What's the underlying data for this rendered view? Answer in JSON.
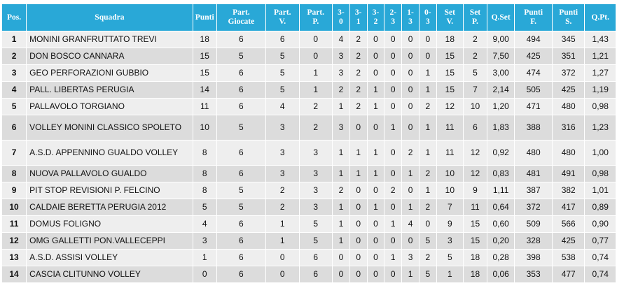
{
  "headers": [
    "Pos.",
    "Squadra",
    "Punti",
    "Part.\nGiocate",
    "Part.\nV.",
    "Part.\nP.",
    "3-\n0",
    "3-\n1",
    "3-\n2",
    "2-\n3",
    "1-\n3",
    "0-\n3",
    "Set\nV.",
    "Set\nP.",
    "Q.Set",
    "Punti\nF.",
    "Punti\nS.",
    "Q.Pt."
  ],
  "rows": [
    [
      "1",
      "MONINI GRANFRUTTATO TREVI",
      "18",
      "6",
      "6",
      "0",
      "4",
      "2",
      "0",
      "0",
      "0",
      "0",
      "18",
      "2",
      "9,00",
      "494",
      "345",
      "1,43"
    ],
    [
      "2",
      "DON BOSCO CANNARA",
      "15",
      "5",
      "5",
      "0",
      "3",
      "2",
      "0",
      "0",
      "0",
      "0",
      "15",
      "2",
      "7,50",
      "425",
      "351",
      "1,21"
    ],
    [
      "3",
      "GEO PERFORAZIONI GUBBIO",
      "15",
      "6",
      "5",
      "1",
      "3",
      "2",
      "0",
      "0",
      "0",
      "1",
      "15",
      "5",
      "3,00",
      "474",
      "372",
      "1,27"
    ],
    [
      "4",
      "PALL. LIBERTAS PERUGIA",
      "14",
      "6",
      "5",
      "1",
      "2",
      "2",
      "1",
      "0",
      "0",
      "1",
      "15",
      "7",
      "2,14",
      "505",
      "425",
      "1,19"
    ],
    [
      "5",
      "PALLAVOLO TORGIANO",
      "11",
      "6",
      "4",
      "2",
      "1",
      "2",
      "1",
      "0",
      "0",
      "2",
      "12",
      "10",
      "1,20",
      "471",
      "480",
      "0,98"
    ],
    [
      "6",
      "VOLLEY MONINI CLASSICO SPOLETO",
      "10",
      "5",
      "3",
      "2",
      "3",
      "0",
      "0",
      "1",
      "0",
      "1",
      "11",
      "6",
      "1,83",
      "388",
      "316",
      "1,23"
    ],
    [
      "7",
      "A.S.D. APPENNINO GUALDO VOLLEY",
      "8",
      "6",
      "3",
      "3",
      "1",
      "1",
      "1",
      "0",
      "2",
      "1",
      "11",
      "12",
      "0,92",
      "480",
      "480",
      "1,00"
    ],
    [
      "8",
      "NUOVA PALLAVOLO GUALDO",
      "8",
      "6",
      "3",
      "3",
      "1",
      "1",
      "1",
      "0",
      "1",
      "2",
      "10",
      "12",
      "0,83",
      "481",
      "491",
      "0,98"
    ],
    [
      "9",
      "PIT STOP REVISIONI P. FELCINO",
      "8",
      "5",
      "2",
      "3",
      "2",
      "0",
      "0",
      "2",
      "0",
      "1",
      "10",
      "9",
      "1,11",
      "387",
      "382",
      "1,01"
    ],
    [
      "10",
      "CALDAIE BERETTA PERUGIA 2012",
      "5",
      "5",
      "2",
      "3",
      "1",
      "0",
      "1",
      "0",
      "1",
      "2",
      "7",
      "11",
      "0,64",
      "372",
      "417",
      "0,89"
    ],
    [
      "11",
      "DOMUS FOLIGNO",
      "4",
      "6",
      "1",
      "5",
      "1",
      "0",
      "0",
      "1",
      "4",
      "0",
      "9",
      "15",
      "0,60",
      "509",
      "566",
      "0,90"
    ],
    [
      "12",
      "OMG GALLETTI PON.VALLECEPPI",
      "3",
      "6",
      "1",
      "5",
      "1",
      "0",
      "0",
      "0",
      "0",
      "5",
      "3",
      "15",
      "0,20",
      "328",
      "425",
      "0,77"
    ],
    [
      "13",
      "A.S.D. ASSISI VOLLEY",
      "1",
      "6",
      "0",
      "6",
      "0",
      "0",
      "0",
      "1",
      "3",
      "2",
      "5",
      "18",
      "0,28",
      "398",
      "538",
      "0,74"
    ],
    [
      "14",
      "CASCIA CLITUNNO VOLLEY",
      "0",
      "6",
      "0",
      "6",
      "0",
      "0",
      "0",
      "0",
      "1",
      "5",
      "1",
      "18",
      "0,06",
      "353",
      "477",
      "0,74"
    ]
  ]
}
